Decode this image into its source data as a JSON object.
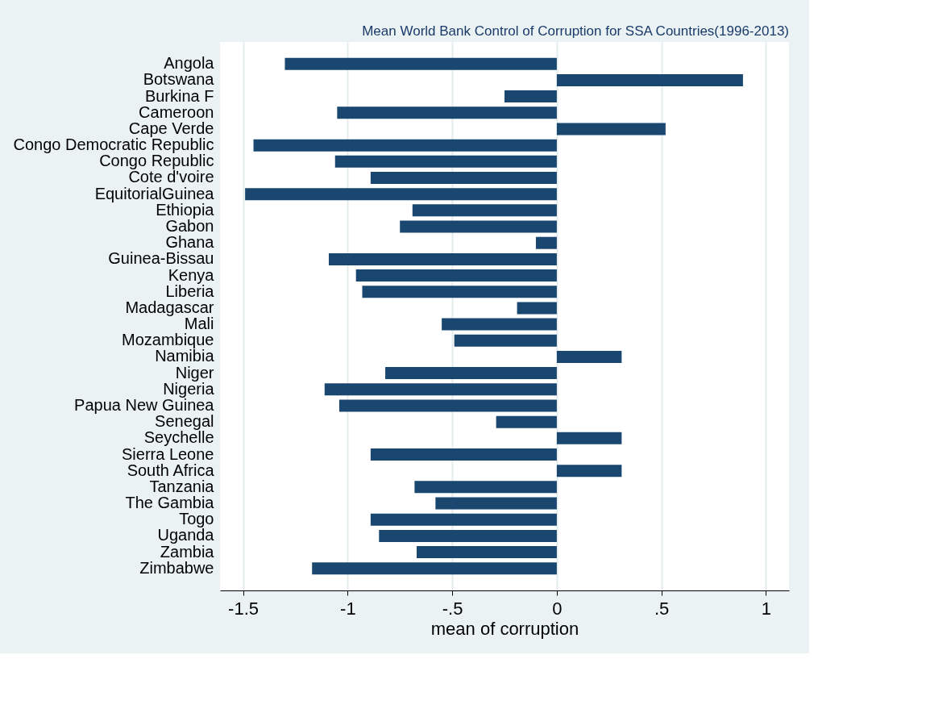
{
  "chart_data": {
    "type": "bar",
    "orientation": "horizontal",
    "title": "Mean World Bank Control of Corruption for SSA Countries(1996-2013)",
    "xlabel": "mean of corruption",
    "categories": [
      "Angola",
      "Botswana",
      "Burkina F",
      "Cameroon",
      "Cape Verde",
      "Congo Democratic Republic",
      "Congo Republic",
      "Cote d'voire",
      "EquitorialGuinea",
      "Ethiopia",
      "Gabon",
      "Ghana",
      "Guinea-Bissau",
      "Kenya",
      "Liberia",
      "Madagascar",
      "Mali",
      "Mozambique",
      "Namibia",
      "Niger",
      "Nigeria",
      "Papua New Guinea",
      "Senegal",
      "Seychelle",
      "Sierra Leone",
      "South Africa",
      "Tanzania",
      "The Gambia",
      "Togo",
      "Uganda",
      "Zambia",
      "Zimbabwe"
    ],
    "values": [
      -1.3,
      0.89,
      -0.25,
      -1.05,
      0.52,
      -1.45,
      -1.06,
      -0.89,
      -1.49,
      -0.69,
      -0.75,
      -0.1,
      -1.09,
      -0.96,
      -0.93,
      -0.19,
      -0.55,
      -0.49,
      0.31,
      -0.82,
      -1.11,
      -1.04,
      -0.29,
      0.31,
      -0.89,
      0.31,
      -0.68,
      -0.58,
      -0.89,
      -0.85,
      -0.67,
      -1.17
    ],
    "color": "#1a476f",
    "xlim": [
      -1.61,
      1.11
    ],
    "xticks": [
      -1.5,
      -1,
      {
        "value": -0.5,
        "label": "-.5"
      },
      0,
      {
        "value": 0.5,
        "label": ".5"
      },
      1
    ],
    "grid": "x"
  }
}
